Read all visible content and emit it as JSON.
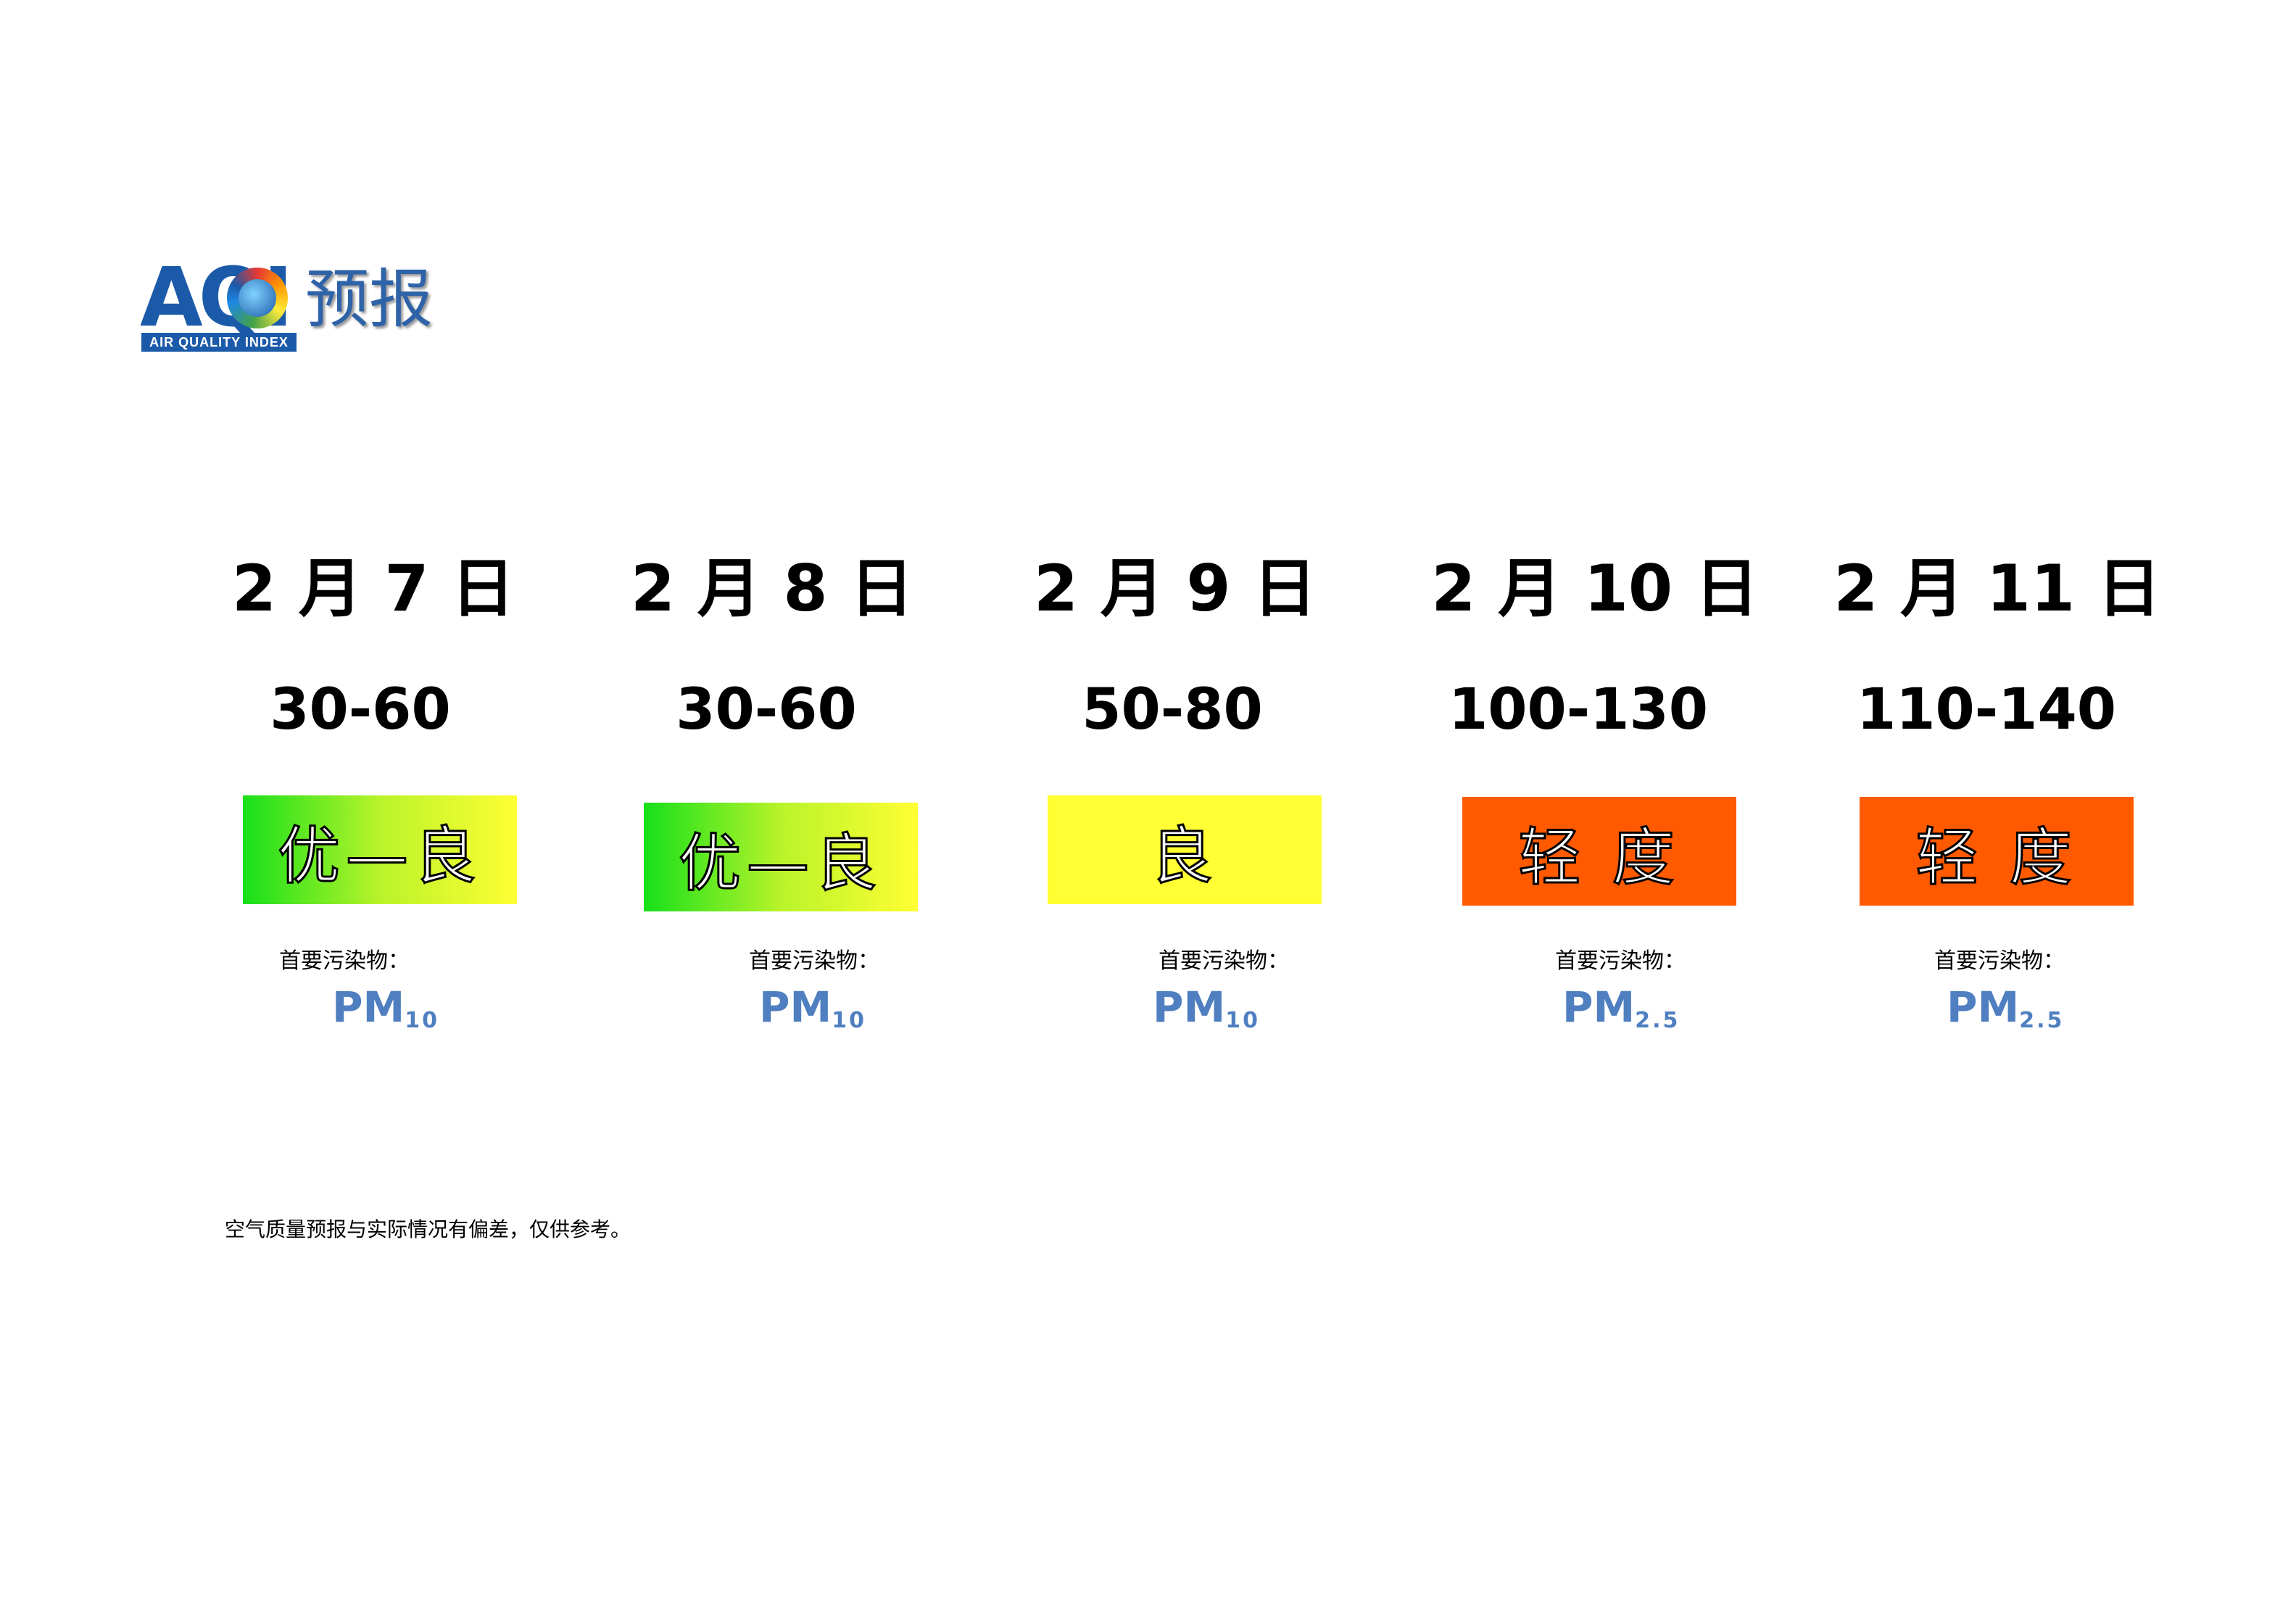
{
  "logo": {
    "aqi_text": "AQI",
    "tagline": "AIR QUALITY INDEX",
    "word": "预报"
  },
  "forecast": [
    {
      "date": "2 月 7 日",
      "range": "30-60",
      "level": "优—良",
      "pollutant_label": "首要污染物：",
      "pollutant": "PM",
      "pollutant_sub": "10"
    },
    {
      "date": "2 月 8 日",
      "range": "30-60",
      "level": "优—良",
      "pollutant_label": "首要污染物：",
      "pollutant": "PM",
      "pollutant_sub": "10"
    },
    {
      "date": "2 月 9 日",
      "range": "50-80",
      "level": "良",
      "pollutant_label": "首要污染物：",
      "pollutant": "PM",
      "pollutant_sub": "10"
    },
    {
      "date": "2 月 10 日",
      "range": "100-130",
      "level": "轻 度",
      "pollutant_label": "首要污染物：",
      "pollutant": "PM",
      "pollutant_sub": "2.5"
    },
    {
      "date": "2 月 11 日",
      "range": "110-140",
      "level": "轻 度",
      "pollutant_label": "首要污染物：",
      "pollutant": "PM",
      "pollutant_sub": "2.5"
    }
  ],
  "colors": {
    "good_start": "#16e01a",
    "moderate": "#ffff33",
    "light_pollution": "#ff5a00",
    "pollutant_text": "#4f7fc0",
    "logo_blue": "#1b5aa8"
  },
  "footnote": "空气质量预报与实际情况有偏差，仅供参考。"
}
